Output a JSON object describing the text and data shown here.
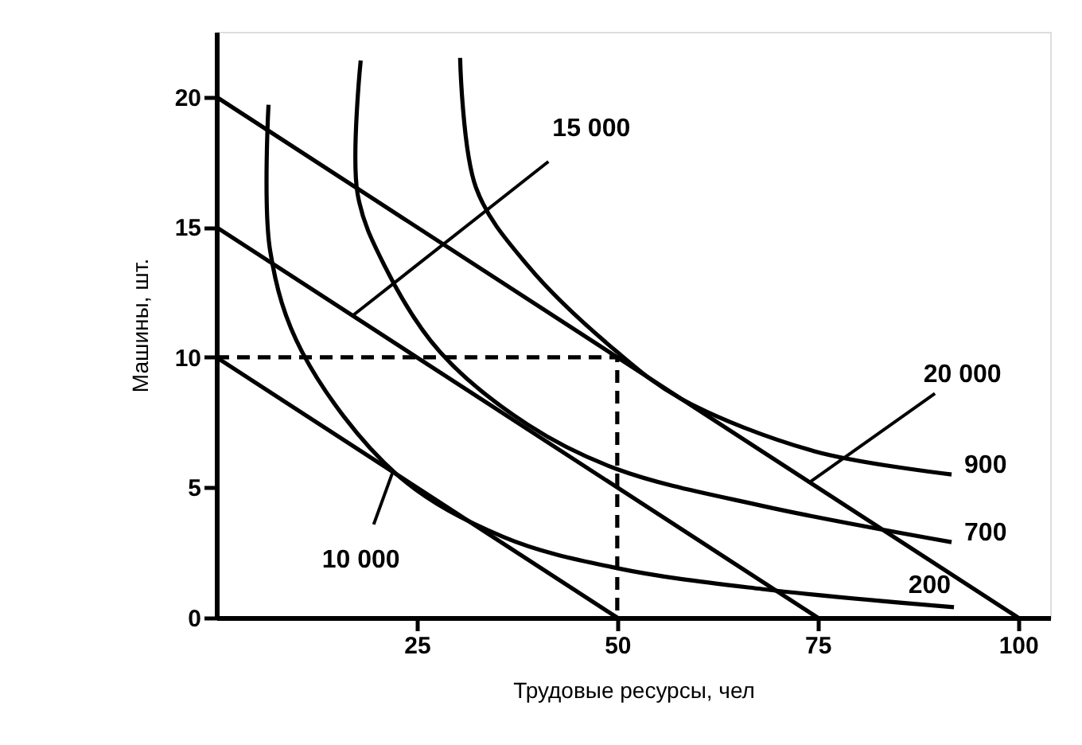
{
  "chart_data": {
    "type": "line",
    "xlabel": "Трудовые ресурсы, чел",
    "ylabel": "Машины, шт.",
    "xlim": [
      0,
      104
    ],
    "ylim": [
      0,
      22.5
    ],
    "xticks": [
      25,
      50,
      75,
      100
    ],
    "yticks": [
      0,
      5,
      10,
      15,
      20
    ],
    "grid": false,
    "marker": "none",
    "line_style": "solid",
    "series": [
      {
        "name": "200",
        "color": "#000000",
        "x": [
          6.5,
          6.7,
          10.7,
          22.5,
          35.8,
          50,
          68,
          92
        ],
        "values": [
          19.7,
          14.1,
          10.2,
          5.5,
          3.1,
          1.9,
          1.1,
          0.4
        ]
      },
      {
        "name": "700",
        "color": "#000000",
        "x": [
          18,
          17.6,
          21,
          27.9,
          38.9,
          50,
          68,
          91.7
        ],
        "values": [
          21.4,
          16.3,
          13.5,
          10.2,
          7.4,
          5.7,
          4.3,
          2.9
        ]
      },
      {
        "name": "900",
        "color": "#000000",
        "x": [
          30.4,
          32.4,
          38.9,
          50,
          58,
          74.5,
          91.7
        ],
        "values": [
          21.5,
          16.5,
          13.5,
          10.2,
          8.4,
          6.4,
          5.5
        ]
      },
      {
        "color": "#000000",
        "x": [
          0,
          50
        ],
        "values": [
          10,
          0
        ]
      },
      {
        "color": "#000000",
        "x": [
          0,
          75
        ],
        "values": [
          15,
          0
        ]
      },
      {
        "color": "#000000",
        "x": [
          0,
          100
        ],
        "values": [
          20,
          0
        ]
      },
      {
        "color": "#000000",
        "x": [
          0,
          50,
          50
        ],
        "values": [
          10,
          10,
          0
        ],
        "line_style": "dashed"
      }
    ],
    "annotations": [
      {
        "text": "15 000",
        "x": 17,
        "y": 11.6
      },
      {
        "text": "10 000",
        "x": 22,
        "y": 5.6
      },
      {
        "text": "20 000",
        "x": 74,
        "y": 5.2
      }
    ]
  }
}
